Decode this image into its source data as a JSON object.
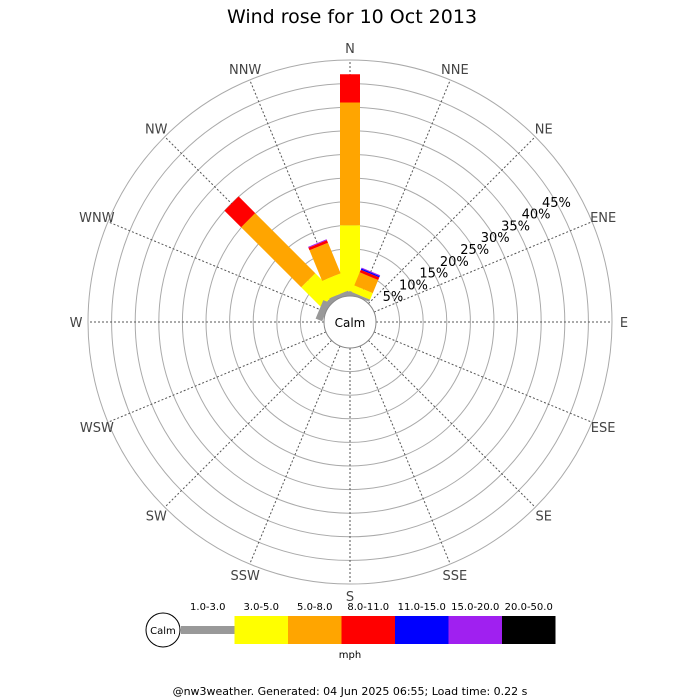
{
  "chart_data": {
    "type": "wind-rose",
    "title": "Wind rose for 10 Oct 2013",
    "directions": [
      "N",
      "NNE",
      "NE",
      "ENE",
      "E",
      "ESE",
      "SE",
      "SSE",
      "S",
      "SSW",
      "SW",
      "WSW",
      "W",
      "WNW",
      "NW",
      "NNW"
    ],
    "radial_ticks": [
      "5%",
      "10%",
      "15%",
      "20%",
      "25%",
      "30%",
      "35%",
      "40%",
      "45%"
    ],
    "radial_max": 50,
    "center_label": "Calm",
    "bins": [
      {
        "label": "1.0-3.0",
        "color": "#999999"
      },
      {
        "label": "3.0-5.0",
        "color": "#ffff00"
      },
      {
        "label": "5.0-8.0",
        "color": "#ffa500"
      },
      {
        "label": "8.0-11.0",
        "color": "#ff0000"
      },
      {
        "label": "11.0-15.0",
        "color": "#0000ff"
      },
      {
        "label": "15.0-20.0",
        "color": "#a020f0"
      },
      {
        "label": "20.0-50.0",
        "color": "#000000"
      }
    ],
    "series": [
      {
        "direction": "N",
        "values": [
          1.0,
          14.0,
          26.0,
          6.0,
          0,
          0,
          0
        ]
      },
      {
        "direction": "NNE",
        "values": [
          0.5,
          1.5,
          3.0,
          0.6,
          0.3,
          0.2,
          0
        ]
      },
      {
        "direction": "NW",
        "values": [
          1.0,
          6.0,
          18.0,
          5.0,
          0,
          0,
          0
        ]
      },
      {
        "direction": "NNW",
        "values": [
          0.8,
          4.0,
          7.0,
          0.6,
          0,
          0.2,
          0
        ]
      },
      {
        "direction": "WNW",
        "values": [
          1.5,
          0,
          0,
          0,
          0,
          0,
          0
        ]
      }
    ],
    "legend_unit": "mph"
  },
  "footer": "@nw3weather. Generated: 04 Jun 2025 06:55; Load time: 0.22 s"
}
